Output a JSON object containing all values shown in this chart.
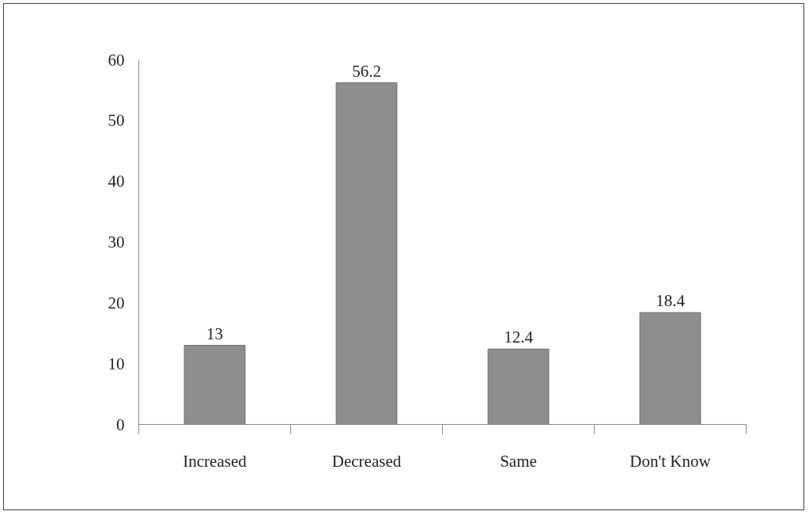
{
  "chart_data": {
    "type": "bar",
    "categories": [
      "Increased",
      "Decreased",
      "Same",
      "Don't Know"
    ],
    "values": [
      13,
      56.2,
      12.4,
      18.4
    ],
    "color": "#8e8e8e",
    "ylim": [
      0,
      60
    ],
    "yticks": [
      0,
      10,
      20,
      30,
      40,
      50,
      60
    ],
    "data_labels": true,
    "grid": false
  }
}
